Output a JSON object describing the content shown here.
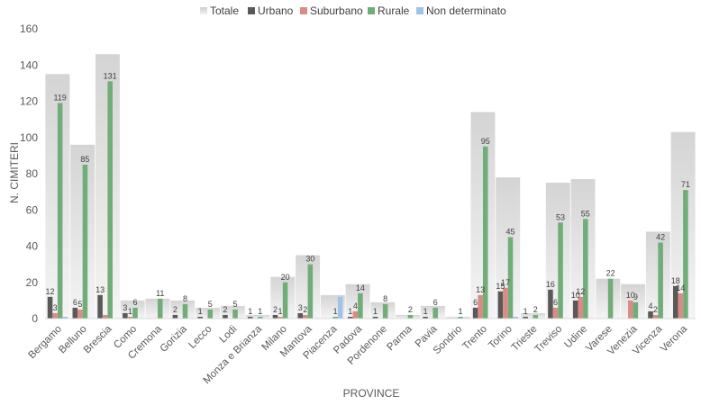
{
  "chart_data": {
    "type": "bar",
    "title": "",
    "xlabel": "PROVINCE",
    "ylabel": "N. CIMITERI",
    "ylim": [
      0,
      160
    ],
    "yticks": [
      "0",
      "20",
      "40",
      "60",
      "80",
      "100",
      "120",
      "140",
      "160"
    ],
    "grid": false,
    "legend_position": "top",
    "categories": [
      "Bergamo",
      "Belluno",
      "Brescia",
      "Como",
      "Cremona",
      "Gorizia",
      "Lecco",
      "Lodi",
      "Monza e Brianza",
      "Milano",
      "Mantova",
      "Piacenza",
      "Padova",
      "Pordenone",
      "Parma",
      "Pavia",
      "Sondrio",
      "Trento",
      "Torino",
      "Trieste",
      "Treviso",
      "Udine",
      "Varese",
      "Venezia",
      "Vicenza",
      "Verona"
    ],
    "series": [
      {
        "name": "Totale",
        "color": "#d9d9d9",
        "values": [
          135,
          96,
          146,
          10,
          11,
          10,
          6,
          7,
          2,
          23,
          35,
          13,
          19,
          9,
          2,
          7,
          1,
          114,
          78,
          3,
          75,
          77,
          22,
          19,
          48,
          103
        ],
        "labels": [
          "",
          "",
          "",
          "",
          "",
          "",
          "",
          "",
          "",
          "",
          "",
          "",
          "",
          "",
          "",
          "",
          "",
          "",
          "",
          "",
          "",
          "",
          "",
          "",
          "",
          ""
        ]
      },
      {
        "name": "Urbano",
        "color": "#595959",
        "values": [
          12,
          6,
          13,
          3,
          0,
          2,
          1,
          2,
          1,
          2,
          3,
          0,
          1,
          1,
          0,
          1,
          0,
          6,
          15,
          1,
          16,
          10,
          0,
          0,
          4,
          18
        ],
        "labels": [
          "12",
          "6",
          "13",
          "3",
          "",
          "2",
          "1",
          "2",
          "1",
          "2",
          "3",
          "",
          "1",
          "1",
          "",
          "1",
          "",
          "6",
          "15",
          "1",
          "16",
          "10",
          "",
          "",
          "4",
          "18"
        ]
      },
      {
        "name": "Suburbano",
        "color": "#d98c85",
        "values": [
          3,
          5,
          2,
          1,
          0,
          0,
          0,
          0,
          0,
          1,
          2,
          0,
          4,
          0,
          0,
          0,
          0,
          13,
          17,
          0,
          6,
          12,
          0,
          10,
          2,
          14
        ],
        "labels": [
          "3",
          "5",
          "",
          "1",
          "",
          "",
          "",
          "",
          "",
          "1",
          "2",
          "",
          "4",
          "",
          "",
          "",
          "",
          "13",
          "17",
          "",
          "6",
          "12",
          "",
          "10",
          "2",
          "14"
        ]
      },
      {
        "name": "Rurale",
        "color": "#70ad77",
        "values": [
          119,
          85,
          131,
          6,
          11,
          8,
          5,
          5,
          1,
          20,
          30,
          1,
          14,
          8,
          2,
          6,
          1,
          95,
          45,
          2,
          53,
          55,
          22,
          9,
          42,
          71
        ],
        "labels": [
          "119",
          "85",
          "131",
          "6",
          "11",
          "8",
          "5",
          "5",
          "1",
          "20",
          "30",
          "1",
          "14",
          "8",
          "2",
          "6",
          "1",
          "95",
          "45",
          "2",
          "53",
          "55",
          "22",
          "9",
          "42",
          "71"
        ]
      },
      {
        "name": "Non determinato",
        "color": "#9dc3e6",
        "values": [
          1,
          0,
          0,
          0,
          0,
          0,
          0,
          0,
          0,
          0,
          0,
          12,
          0,
          0,
          0,
          0,
          0,
          0,
          1,
          0,
          0,
          0,
          0,
          0,
          0,
          0
        ],
        "labels": [
          "",
          "",
          "",
          "",
          "",
          "",
          "",
          "",
          "",
          "",
          "",
          "",
          "",
          "",
          "",
          "",
          "",
          "",
          "",
          "",
          "",
          "",
          "",
          "",
          "",
          ""
        ]
      }
    ]
  }
}
